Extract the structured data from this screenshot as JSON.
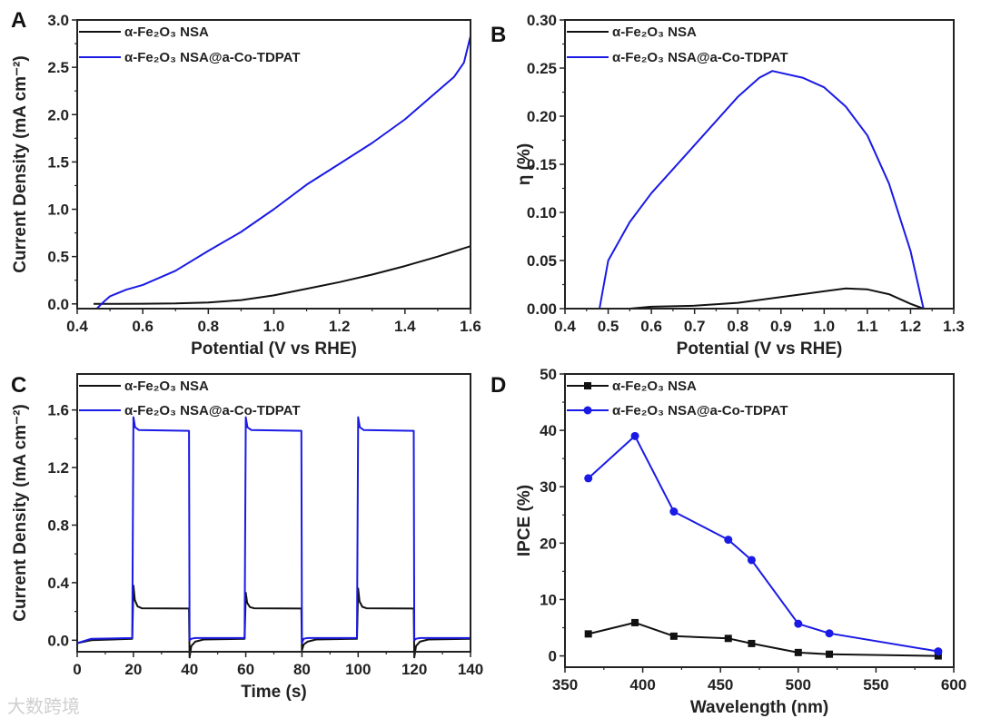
{
  "colors": {
    "black_series": "#111111",
    "blue_series": "#1a1ae6",
    "axis": "#222222"
  },
  "watermark": "大数跨境",
  "chart_data": [
    {
      "panel": "A",
      "type": "line",
      "xlabel": "Potential (V vs RHE)",
      "ylabel": "Current Density (mA cm⁻²)",
      "xlim": [
        0.4,
        1.6
      ],
      "ylim": [
        -0.05,
        3.0
      ],
      "xticks": [
        0.4,
        0.6,
        0.8,
        1.0,
        1.2,
        1.4,
        1.6
      ],
      "xtick_labels": [
        "0.4",
        "0.6",
        "0.8",
        "1.0",
        "1.2",
        "1.4",
        "1.6"
      ],
      "yticks": [
        0,
        0.5,
        1.0,
        1.5,
        2.0,
        2.5,
        3.0
      ],
      "ytick_labels": [
        "0.0",
        "0.5",
        "1.0",
        "1.5",
        "2.0",
        "2.5",
        "3.0"
      ],
      "legend_position": "top-left",
      "series": [
        {
          "name": "α-Fe₂O₃ NSA",
          "color": "#111111",
          "x": [
            0.45,
            0.6,
            0.7,
            0.8,
            0.9,
            1.0,
            1.1,
            1.2,
            1.3,
            1.4,
            1.5,
            1.6
          ],
          "y": [
            0,
            0.002,
            0.005,
            0.015,
            0.04,
            0.09,
            0.16,
            0.23,
            0.31,
            0.4,
            0.5,
            0.61
          ]
        },
        {
          "name": "α-Fe₂O₃ NSA@a-Co-TDPAT",
          "color": "#1a1ae6",
          "x": [
            0.46,
            0.48,
            0.5,
            0.55,
            0.6,
            0.7,
            0.8,
            0.9,
            1.0,
            1.1,
            1.2,
            1.3,
            1.4,
            1.5,
            1.55,
            1.58,
            1.6
          ],
          "y": [
            -0.05,
            0.02,
            0.08,
            0.15,
            0.2,
            0.35,
            0.56,
            0.76,
            1.0,
            1.26,
            1.48,
            1.7,
            1.95,
            2.25,
            2.4,
            2.55,
            2.83
          ]
        }
      ]
    },
    {
      "panel": "B",
      "type": "line",
      "xlabel": "Potential (V vs RHE)",
      "ylabel": "η (%)",
      "xlim": [
        0.4,
        1.3
      ],
      "ylim": [
        0,
        0.3
      ],
      "xticks": [
        0.4,
        0.5,
        0.6,
        0.7,
        0.8,
        0.9,
        1.0,
        1.1,
        1.2,
        1.3
      ],
      "xtick_labels": [
        "0.4",
        "0.5",
        "0.6",
        "0.7",
        "0.8",
        "0.9",
        "1.0",
        "1.1",
        "1.2",
        "1.3"
      ],
      "yticks": [
        0,
        0.05,
        0.1,
        0.15,
        0.2,
        0.25,
        0.3
      ],
      "ytick_labels": [
        "0.00",
        "0.05",
        "0.10",
        "0.15",
        "0.20",
        "0.25",
        "0.30"
      ],
      "legend_position": "top-left",
      "series": [
        {
          "name": "α-Fe₂O₃ NSA",
          "color": "#111111",
          "x": [
            0.55,
            0.6,
            0.7,
            0.8,
            0.9,
            1.0,
            1.05,
            1.1,
            1.15,
            1.2,
            1.23
          ],
          "y": [
            0,
            0.002,
            0.003,
            0.006,
            0.012,
            0.018,
            0.021,
            0.02,
            0.015,
            0.005,
            0
          ]
        },
        {
          "name": "α-Fe₂O₃ NSA@a-Co-TDPAT",
          "color": "#1a1ae6",
          "x": [
            0.48,
            0.5,
            0.55,
            0.6,
            0.7,
            0.8,
            0.85,
            0.88,
            0.95,
            1.0,
            1.05,
            1.1,
            1.15,
            1.2,
            1.23
          ],
          "y": [
            0,
            0.05,
            0.09,
            0.12,
            0.17,
            0.22,
            0.24,
            0.247,
            0.24,
            0.23,
            0.21,
            0.18,
            0.13,
            0.06,
            0
          ]
        }
      ]
    },
    {
      "panel": "C",
      "type": "line",
      "xlabel": "Time (s)",
      "ylabel": "Current Density (mA cm⁻²)",
      "xlim": [
        0,
        140
      ],
      "ylim": [
        -0.08,
        1.85
      ],
      "xticks": [
        0,
        20,
        40,
        60,
        80,
        100,
        120,
        140
      ],
      "xtick_labels": [
        "0",
        "20",
        "40",
        "60",
        "80",
        "100",
        "120",
        "140"
      ],
      "yticks": [
        0,
        0.4,
        0.8,
        1.2,
        1.6
      ],
      "ytick_labels": [
        "0.0",
        "0.4",
        "0.8",
        "1.2",
        "1.6"
      ],
      "legend_position": "top-left",
      "series": [
        {
          "name": "α-Fe₂O₃ NSA",
          "color": "#111111",
          "x": [
            0,
            5,
            19.6,
            20,
            20.5,
            21.5,
            23,
            39.8,
            40,
            40.6,
            42,
            45,
            59.6,
            60,
            60.5,
            61.5,
            63,
            79.8,
            80,
            80.6,
            82,
            85,
            99.6,
            100,
            100.5,
            101.5,
            103,
            119.8,
            120,
            120.6,
            122,
            125,
            140
          ],
          "y": [
            -0.02,
            0,
            0.01,
            0.38,
            0.28,
            0.235,
            0.222,
            0.22,
            -0.12,
            -0.04,
            -0.01,
            0.005,
            0.01,
            0.33,
            0.26,
            0.23,
            0.222,
            0.22,
            -0.07,
            -0.03,
            -0.01,
            0.005,
            0.01,
            0.36,
            0.27,
            0.232,
            0.222,
            0.22,
            -0.12,
            -0.04,
            -0.01,
            0.005,
            0.01
          ]
        },
        {
          "name": "α-Fe₂O₃ NSA@a-Co-TDPAT",
          "color": "#1a1ae6",
          "x": [
            0,
            5,
            19.6,
            20,
            20.6,
            22,
            39.8,
            40,
            40.6,
            42,
            59.6,
            60,
            60.6,
            62,
            79.8,
            80,
            80.6,
            82,
            99.6,
            100,
            100.6,
            102,
            119.8,
            120,
            120.6,
            122,
            140
          ],
          "y": [
            -0.02,
            0.01,
            0.015,
            1.55,
            1.48,
            1.46,
            1.455,
            0.0,
            0.01,
            0.015,
            0.015,
            1.55,
            1.48,
            1.46,
            1.455,
            -0.02,
            0.01,
            0.015,
            0.015,
            1.55,
            1.48,
            1.46,
            1.455,
            0.0,
            0.01,
            0.015,
            0.015
          ]
        }
      ]
    },
    {
      "panel": "D",
      "type": "line",
      "xlabel": "Wavelength (nm)",
      "ylabel": "IPCE (%)",
      "xlim": [
        350,
        600
      ],
      "ylim": [
        -2,
        50
      ],
      "xticks": [
        350,
        400,
        450,
        500,
        550,
        600
      ],
      "xtick_labels": [
        "350",
        "400",
        "450",
        "500",
        "550",
        "600"
      ],
      "yticks": [
        0,
        10,
        20,
        30,
        40,
        50
      ],
      "ytick_labels": [
        "0",
        "10",
        "20",
        "30",
        "40",
        "50"
      ],
      "legend_position": "top-left",
      "series": [
        {
          "name": "α-Fe₂O₃ NSA",
          "color": "#111111",
          "marker": "square",
          "x": [
            365,
            395,
            420,
            455,
            470,
            500,
            520,
            590
          ],
          "y": [
            3.9,
            5.9,
            3.5,
            3.1,
            2.2,
            0.6,
            0.3,
            0
          ]
        },
        {
          "name": "α-Fe₂O₃ NSA@a-Co-TDPAT",
          "color": "#1a1ae6",
          "marker": "circle",
          "x": [
            365,
            395,
            420,
            455,
            470,
            500,
            520,
            590
          ],
          "y": [
            31.5,
            39,
            25.6,
            20.6,
            17,
            5.7,
            4,
            0.8
          ]
        }
      ]
    }
  ]
}
